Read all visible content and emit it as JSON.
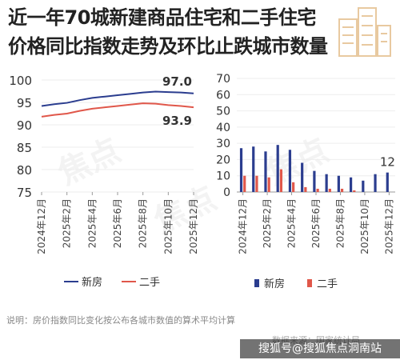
{
  "title_line1": "近一年70城新建商品住宅和二手住宅",
  "title_line2": "价格同比指数走势及环比止跌城市数量",
  "note": "说明：房价指数同比变化按公布各城市数值的算术平均计算",
  "source_watermark": "数据来源：国家统计局",
  "sohu_watermark": "搜狐号@搜狐焦点洞南站",
  "colors": {
    "new": "#2b3d8f",
    "second": "#e0574a",
    "axis": "#d0d0d0",
    "text": "#444"
  },
  "chart_data": [
    {
      "type": "line",
      "x": [
        "2024年12月",
        "2025年1月",
        "2025年2月",
        "2025年3月",
        "2025年4月",
        "2025年5月",
        "2025年6月",
        "2025年7月",
        "2025年8月",
        "2025年9月",
        "2025年10月",
        "2025年11月",
        "2025年12月"
      ],
      "x_tick_labels": [
        "2024年12月",
        "2025年2月",
        "2025年4月",
        "2025年6月",
        "2025年8月",
        "2025年10月",
        "2025年12月"
      ],
      "series": [
        {
          "name": "新房",
          "values": [
            94.2,
            94.6,
            94.9,
            95.5,
            96.0,
            96.3,
            96.6,
            96.9,
            97.2,
            97.4,
            97.3,
            97.2,
            97.0
          ],
          "color": "#2b3d8f",
          "end_label": "97.0"
        },
        {
          "name": "二手",
          "values": [
            91.8,
            92.2,
            92.5,
            93.1,
            93.6,
            93.9,
            94.2,
            94.5,
            94.8,
            94.7,
            94.4,
            94.2,
            93.9
          ],
          "color": "#e0574a",
          "end_label": "93.9"
        }
      ],
      "ylim": [
        75,
        100
      ],
      "yticks": [
        75,
        80,
        85,
        90,
        95,
        100
      ],
      "legend": "bottom"
    },
    {
      "type": "bar",
      "categories": [
        "2024年12月",
        "2025年1月",
        "2025年2月",
        "2025年3月",
        "2025年4月",
        "2025年5月",
        "2025年6月",
        "2025年7月",
        "2025年8月",
        "2025年9月",
        "2025年10月",
        "2025年11月",
        "2025年12月"
      ],
      "x_tick_labels": [
        "2024年12月",
        "2025年2月",
        "2025年4月",
        "2025年6月",
        "2025年8月",
        "2025年10月",
        "2025年12月"
      ],
      "series": [
        {
          "name": "新房",
          "values": [
            27,
            28,
            25,
            29,
            26,
            18,
            13,
            11,
            10,
            9,
            7,
            11,
            12
          ],
          "color": "#2b3d8f"
        },
        {
          "name": "二手",
          "values": [
            10,
            10,
            9,
            14,
            6,
            3,
            2,
            2,
            2,
            1,
            0,
            0,
            0
          ],
          "color": "#e0574a"
        }
      ],
      "annotations": [
        {
          "text": "12"
        }
      ],
      "ylim": [
        0,
        70
      ],
      "yticks": [
        0,
        10,
        20,
        30,
        40,
        50,
        60,
        70
      ],
      "legend": "bottom"
    }
  ]
}
